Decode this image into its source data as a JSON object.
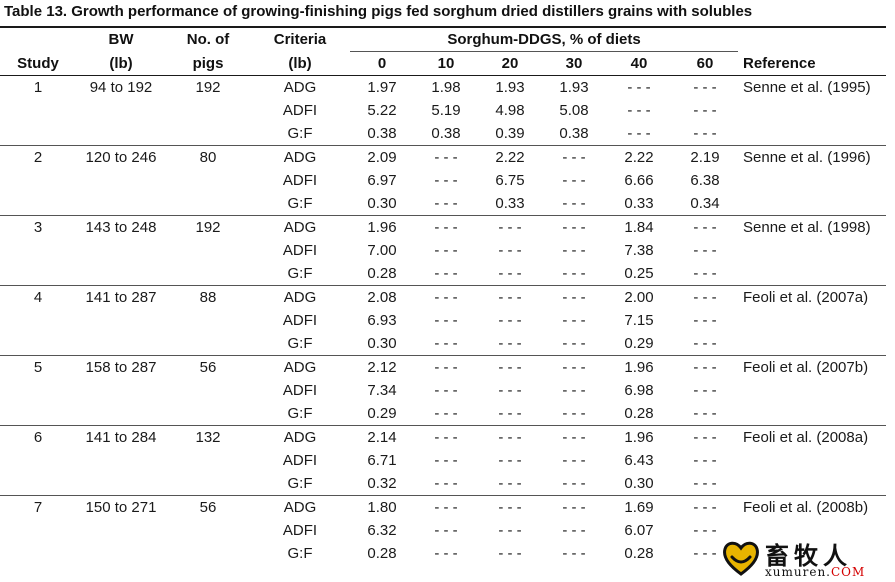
{
  "title": "Table 13. Growth performance of growing-finishing pigs fed sorghum dried distillers grains with solubles",
  "headers": {
    "study": "Study",
    "bw_top": "BW",
    "bw_bottom": "(lb)",
    "pigs_top": "No. of",
    "pigs_bottom": "pigs",
    "criteria_top": "Criteria",
    "criteria_bottom": "(lb)",
    "group": "Sorghum-DDGS, % of diets",
    "levels": [
      "0",
      "10",
      "20",
      "30",
      "40",
      "60"
    ],
    "reference": "Reference"
  },
  "studies": [
    {
      "study": "1",
      "bw": "94 to 192",
      "pigs": "192",
      "reference": "Senne et al. (1995)",
      "rows": [
        {
          "criteria": "ADG",
          "values": [
            "1.97",
            "1.98",
            "1.93",
            "1.93",
            "- - -",
            "- - -"
          ]
        },
        {
          "criteria": "ADFI",
          "values": [
            "5.22",
            "5.19",
            "4.98",
            "5.08",
            "- - -",
            "- - -"
          ]
        },
        {
          "criteria": "G:F",
          "values": [
            "0.38",
            "0.38",
            "0.39",
            "0.38",
            "- - -",
            "- - -"
          ]
        }
      ]
    },
    {
      "study": "2",
      "bw": "120 to 246",
      "pigs": "80",
      "reference": "Senne et al. (1996)",
      "rows": [
        {
          "criteria": "ADG",
          "values": [
            "2.09",
            "- - -",
            "2.22",
            "- - -",
            "2.22",
            "2.19"
          ]
        },
        {
          "criteria": "ADFI",
          "values": [
            "6.97",
            "- - -",
            "6.75",
            "- - -",
            "6.66",
            "6.38"
          ]
        },
        {
          "criteria": "G:F",
          "values": [
            "0.30",
            "- - -",
            "0.33",
            "- - -",
            "0.33",
            "0.34"
          ]
        }
      ]
    },
    {
      "study": "3",
      "bw": "143 to 248",
      "pigs": "192",
      "reference": "Senne et al. (1998)",
      "rows": [
        {
          "criteria": "ADG",
          "values": [
            "1.96",
            "- - -",
            "- - -",
            "- - -",
            "1.84",
            "- - -"
          ]
        },
        {
          "criteria": "ADFI",
          "values": [
            "7.00",
            "- - -",
            "- - -",
            "- - -",
            "7.38",
            "- - -"
          ]
        },
        {
          "criteria": "G:F",
          "values": [
            "0.28",
            "- - -",
            "- - -",
            "- - -",
            "0.25",
            "- - -"
          ]
        }
      ]
    },
    {
      "study": "4",
      "bw": "141 to 287",
      "pigs": "88",
      "reference": "Feoli et al. (2007a)",
      "rows": [
        {
          "criteria": "ADG",
          "values": [
            "2.08",
            "- - -",
            "- - -",
            "- - -",
            "2.00",
            "- - -"
          ]
        },
        {
          "criteria": "ADFI",
          "values": [
            "6.93",
            "- - -",
            "- - -",
            "- - -",
            "7.15",
            "- - -"
          ]
        },
        {
          "criteria": "G:F",
          "values": [
            "0.30",
            "- - -",
            "- - -",
            "- - -",
            "0.29",
            "- - -"
          ]
        }
      ]
    },
    {
      "study": "5",
      "bw": "158 to 287",
      "pigs": "56",
      "reference": "Feoli et al. (2007b)",
      "rows": [
        {
          "criteria": "ADG",
          "values": [
            "2.12",
            "- - -",
            "- - -",
            "- - -",
            "1.96",
            "- - -"
          ]
        },
        {
          "criteria": "ADFI",
          "values": [
            "7.34",
            "- - -",
            "- - -",
            "- - -",
            "6.98",
            "- - -"
          ]
        },
        {
          "criteria": "G:F",
          "values": [
            "0.29",
            "- - -",
            "- - -",
            "- - -",
            "0.28",
            "- - -"
          ]
        }
      ]
    },
    {
      "study": "6",
      "bw": "141 to 284",
      "pigs": "132",
      "reference": "Feoli et al. (2008a)",
      "rows": [
        {
          "criteria": "ADG",
          "values": [
            "2.14",
            "- - -",
            "- - -",
            "- - -",
            "1.96",
            "- - -"
          ]
        },
        {
          "criteria": "ADFI",
          "values": [
            "6.71",
            "- - -",
            "- - -",
            "- - -",
            "6.43",
            "- - -"
          ]
        },
        {
          "criteria": "G:F",
          "values": [
            "0.32",
            "- - -",
            "- - -",
            "- - -",
            "0.30",
            "- - -"
          ]
        }
      ]
    },
    {
      "study": "7",
      "bw": "150 to 271",
      "pigs": "56",
      "reference": "Feoli et al. (2008b)",
      "rows": [
        {
          "criteria": "ADG",
          "values": [
            "1.80",
            "- - -",
            "- - -",
            "- - -",
            "1.69",
            "- - -"
          ]
        },
        {
          "criteria": "ADFI",
          "values": [
            "6.32",
            "- - -",
            "- - -",
            "- - -",
            "6.07",
            "- - -"
          ]
        },
        {
          "criteria": "G:F",
          "values": [
            "0.28",
            "- - -",
            "- - -",
            "- - -",
            "0.28",
            "- - -"
          ]
        }
      ]
    }
  ],
  "watermark": {
    "cn": "畜牧人",
    "en": "xumuren.",
    "domain": "COM",
    "icon": "heart-smile-logo-icon",
    "colors": {
      "heart": "#e8b400",
      "accent": "#d40000"
    }
  }
}
